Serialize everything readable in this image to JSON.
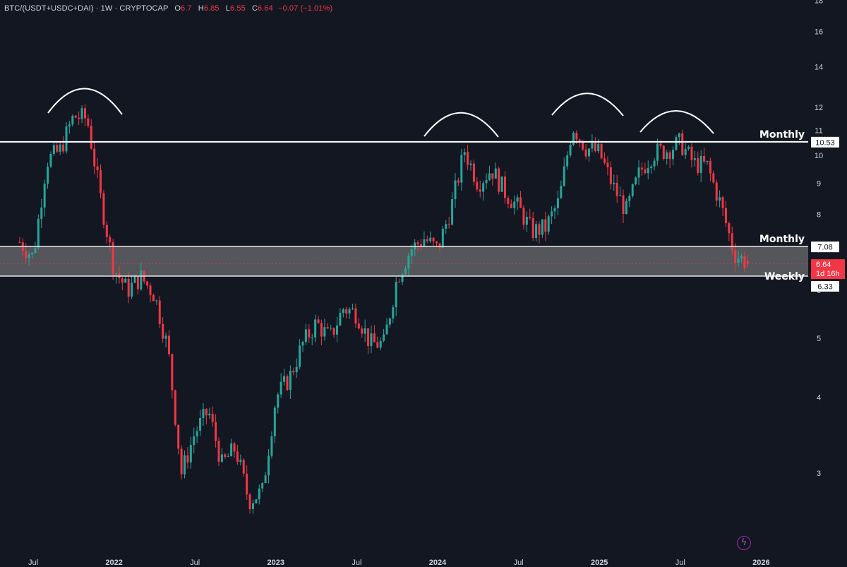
{
  "header": {
    "symbol": "BTC/(USDT+USDC+DAI) · 1W · CRYPTOCAP",
    "o_label": "O",
    "o_value": "6.7",
    "h_label": "H",
    "h_value": "6.85",
    "l_label": "L",
    "l_value": "6.55",
    "c_label": "C",
    "c_value": "6.64",
    "change": "−0.07 (−1.01%)"
  },
  "price_axis": {
    "ticks": [
      "18",
      "16",
      "14",
      "12",
      "11",
      "10",
      "9",
      "8",
      "7",
      "6",
      "5",
      "4",
      "3"
    ]
  },
  "time_axis": {
    "labels": [
      "Jul",
      "2022",
      "Jul",
      "2023",
      "Jul",
      "2024",
      "Jul",
      "2025",
      "Jul",
      "2026"
    ]
  },
  "levels": [
    {
      "name": "Monthly",
      "value": "10.53"
    },
    {
      "name": "Monthly",
      "value": "7.08"
    },
    {
      "name": "Weekly",
      "value": "6.33"
    }
  ],
  "last_price": {
    "value": "6.64",
    "countdown": "1d 16h"
  },
  "indicator_icon": "lightning-bolt-icon",
  "colors": {
    "background": "#131722",
    "up": "#26a69a",
    "down": "#f23645",
    "zone_fill": "#8a8a8a",
    "level_line": "#ffffff"
  },
  "chart_data": {
    "type": "candlestick",
    "symbol": "BTC/(USDT+USDC+DAI)",
    "interval": "1W",
    "scale": "log",
    "ylim": [
      2.5,
      18
    ],
    "last_candle": {
      "open": 6.7,
      "high": 6.85,
      "low": 6.55,
      "close": 6.64
    },
    "horizontal_levels": [
      10.53,
      7.08,
      6.33
    ],
    "support_zone": [
      6.33,
      7.08
    ],
    "close_path": [
      [
        "2021-06",
        7.2
      ],
      [
        "2021-07",
        6.8
      ],
      [
        "2021-08",
        9.8
      ],
      [
        "2021-09",
        10.2
      ],
      [
        "2021-10",
        11.6
      ],
      [
        "2021-11",
        11.5
      ],
      [
        "2021-12",
        8.5
      ],
      [
        "2022-01",
        6.5
      ],
      [
        "2022-02",
        6.0
      ],
      [
        "2022-03",
        6.3
      ],
      [
        "2022-04",
        5.9
      ],
      [
        "2022-05",
        4.8
      ],
      [
        "2022-06",
        3.0
      ],
      [
        "2022-07",
        3.5
      ],
      [
        "2022-08",
        3.8
      ],
      [
        "2022-09",
        3.1
      ],
      [
        "2022-10",
        3.3
      ],
      [
        "2022-11",
        2.7
      ],
      [
        "2022-12",
        2.8
      ],
      [
        "2023-01",
        4.0
      ],
      [
        "2023-02",
        4.3
      ],
      [
        "2023-03",
        4.9
      ],
      [
        "2023-04",
        5.3
      ],
      [
        "2023-05",
        5.0
      ],
      [
        "2023-06",
        5.6
      ],
      [
        "2023-07",
        5.5
      ],
      [
        "2023-08",
        4.9
      ],
      [
        "2023-09",
        4.9
      ],
      [
        "2023-10",
        6.3
      ],
      [
        "2023-11",
        7.0
      ],
      [
        "2023-12",
        7.3
      ],
      [
        "2024-01",
        7.0
      ],
      [
        "2024-02",
        8.2
      ],
      [
        "2024-03",
        10.2
      ],
      [
        "2024-04",
        9.0
      ],
      [
        "2024-05",
        9.5
      ],
      [
        "2024-06",
        8.7
      ],
      [
        "2024-07",
        8.2
      ],
      [
        "2024-08",
        7.5
      ],
      [
        "2024-09",
        7.6
      ],
      [
        "2024-10",
        8.4
      ],
      [
        "2024-11",
        11.2
      ],
      [
        "2024-12",
        10.3
      ],
      [
        "2025-01",
        10.1
      ],
      [
        "2025-02",
        8.9
      ],
      [
        "2025-03",
        8.1
      ],
      [
        "2025-04",
        9.4
      ],
      [
        "2025-05",
        10.1
      ],
      [
        "2025-06",
        10.2
      ],
      [
        "2025-07",
        10.5
      ],
      [
        "2025-08",
        9.7
      ],
      [
        "2025-09",
        9.6
      ],
      [
        "2025-10",
        8.3
      ],
      [
        "2025-11",
        6.9
      ],
      [
        "2025-12",
        6.64
      ]
    ]
  }
}
